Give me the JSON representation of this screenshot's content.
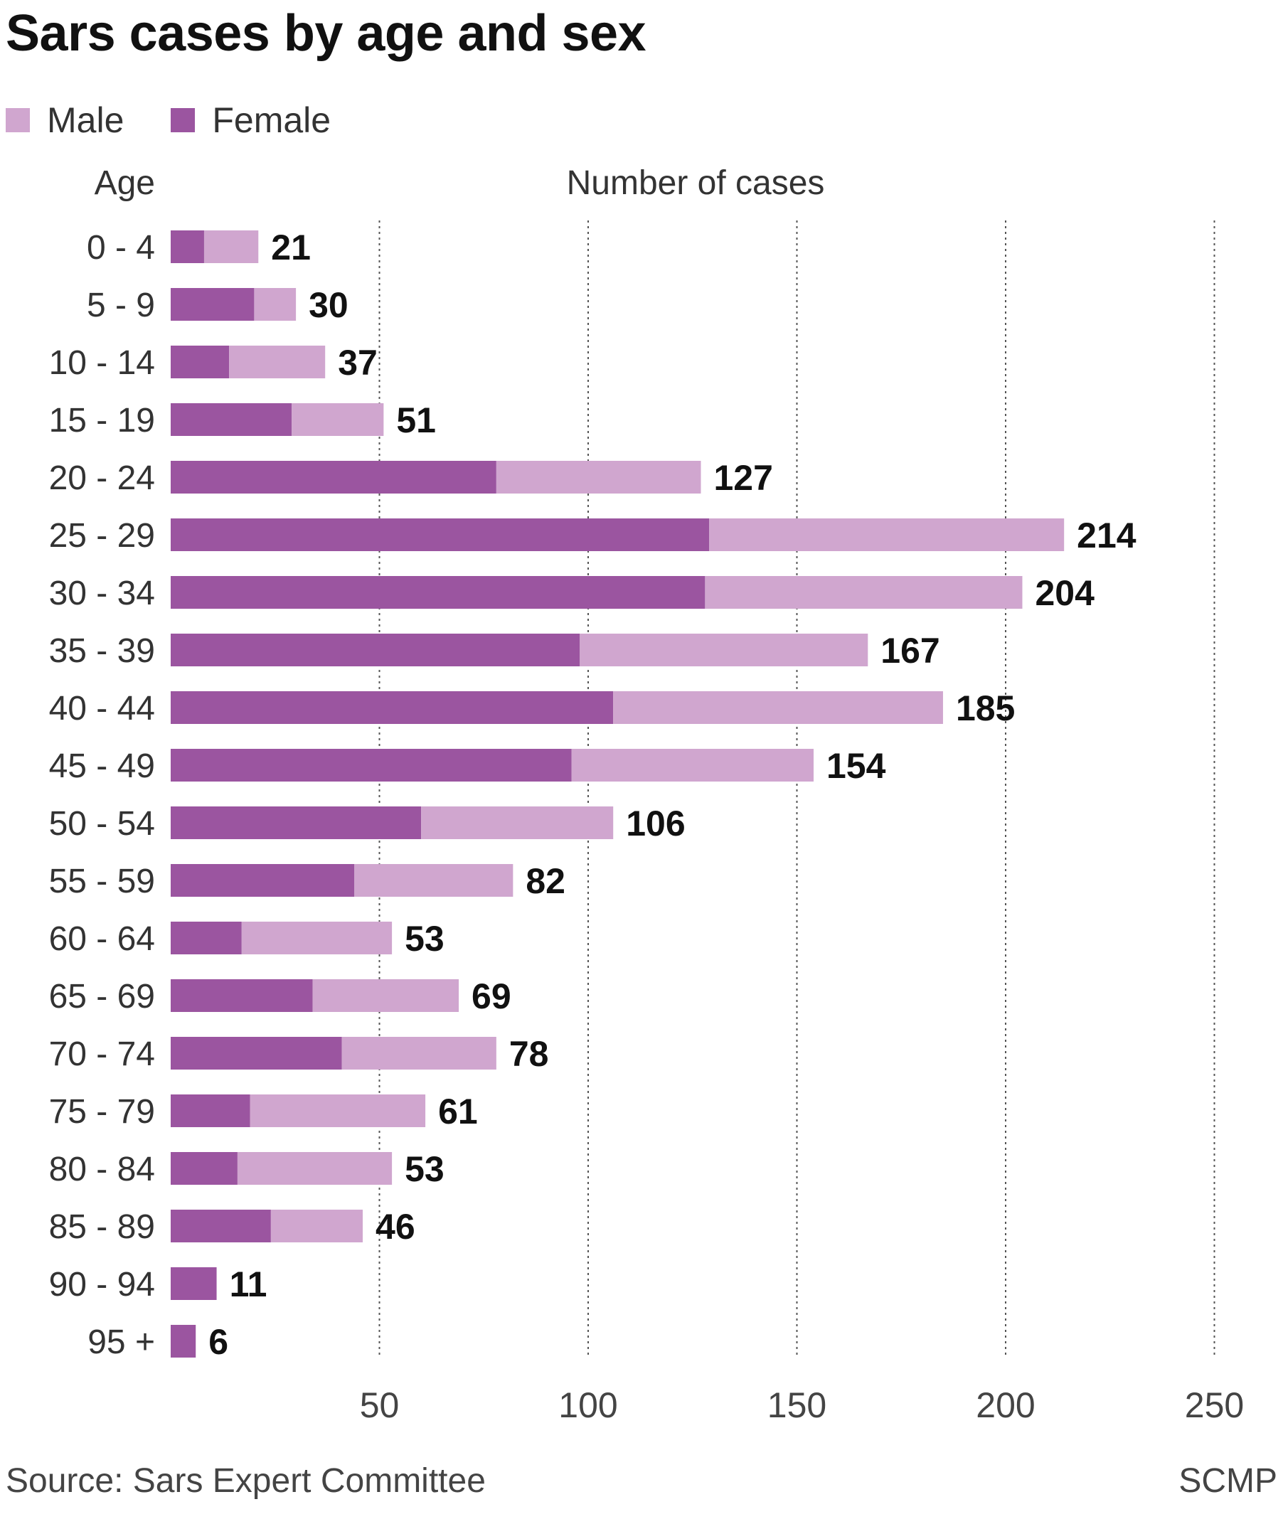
{
  "chart_data": {
    "type": "bar",
    "orientation": "horizontal",
    "stacked": true,
    "title": "Sars cases by age and sex",
    "y_axis_title": "Age",
    "x_axis_title": "Number of cases",
    "categories": [
      "0 - 4",
      "5 - 9",
      "10 - 14",
      "15 - 19",
      "20 - 24",
      "25 - 29",
      "30 - 34",
      "35 - 39",
      "40 - 44",
      "45 - 49",
      "50 - 54",
      "55 - 59",
      "60 - 64",
      "65 - 69",
      "70 - 74",
      "75 - 79",
      "80 - 84",
      "85 - 89",
      "90 - 94",
      "95 +"
    ],
    "series": [
      {
        "name": "Female",
        "color": "#9b55a0",
        "values": [
          8,
          20,
          14,
          29,
          78,
          129,
          128,
          98,
          106,
          96,
          60,
          44,
          17,
          34,
          41,
          19,
          16,
          24,
          11,
          6
        ]
      },
      {
        "name": "Male",
        "color": "#d0a6cf",
        "values": [
          13,
          10,
          23,
          22,
          49,
          85,
          76,
          69,
          79,
          58,
          46,
          38,
          36,
          35,
          37,
          42,
          37,
          22,
          0,
          0
        ]
      }
    ],
    "totals": [
      21,
      30,
      37,
      51,
      127,
      214,
      204,
      167,
      185,
      154,
      106,
      82,
      53,
      69,
      78,
      61,
      53,
      46,
      11,
      6
    ],
    "xticks": [
      50,
      100,
      150,
      200,
      250
    ],
    "xlim": [
      0,
      250
    ],
    "grid": "vertical dotted"
  },
  "legend": [
    {
      "label": "Male",
      "color": "#d0a6cf"
    },
    {
      "label": "Female",
      "color": "#9b55a0"
    }
  ],
  "source": "Source: Sars Expert Committee",
  "credit": "SCMP"
}
